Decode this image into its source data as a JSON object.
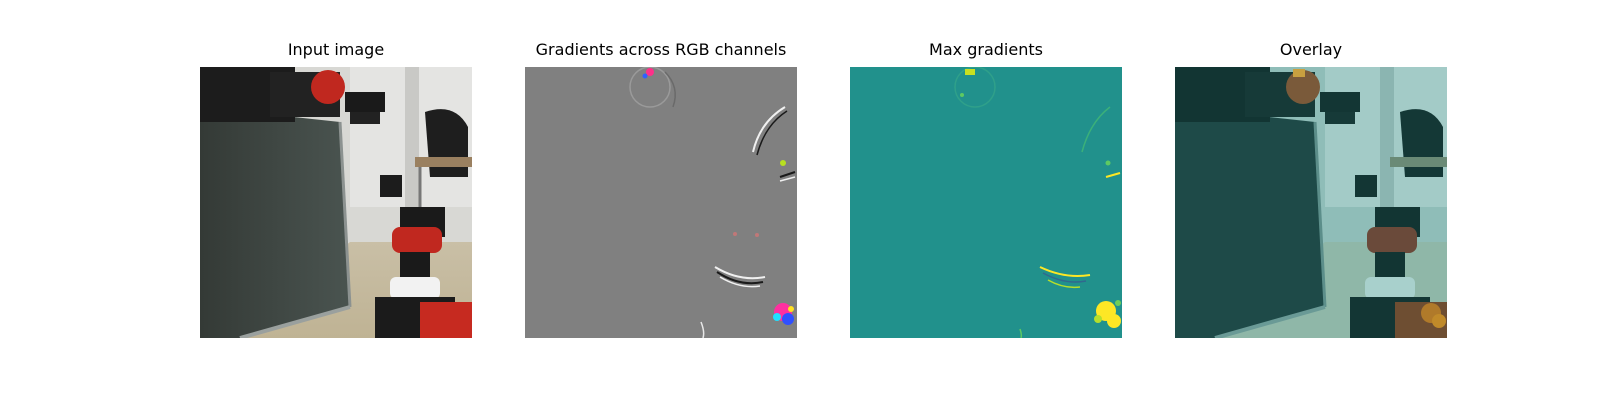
{
  "panels": [
    {
      "title": "Input image"
    },
    {
      "title": "Gradients across RGB channels"
    },
    {
      "title": "Max gradients"
    },
    {
      "title": "Overlay"
    }
  ]
}
